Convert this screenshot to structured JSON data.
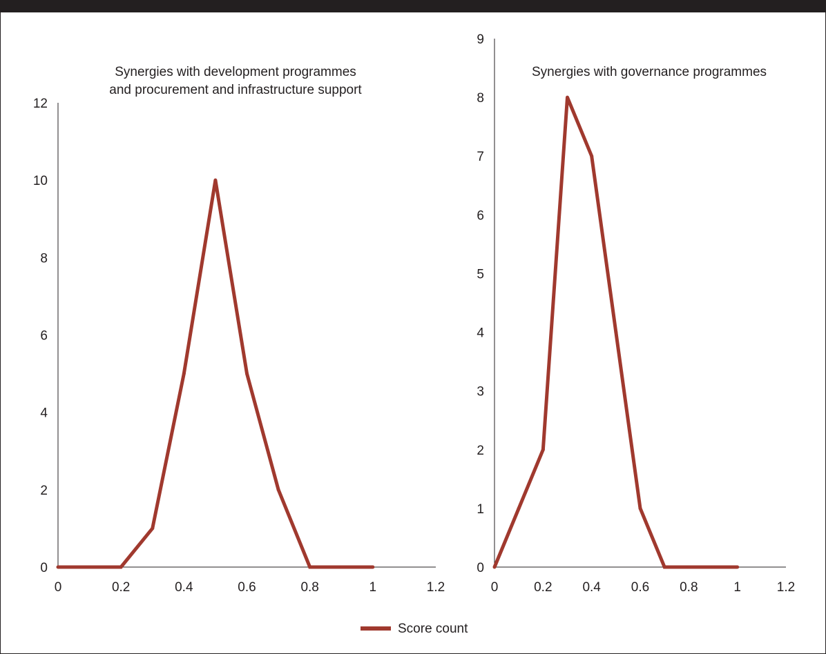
{
  "colors": {
    "series": "#a0392e",
    "axis": "#231f20",
    "topbar": "#231f20"
  },
  "legend": {
    "label": "Score count",
    "placement": "bottom-center"
  },
  "chart_data": [
    {
      "type": "line",
      "title_lines": [
        "Synergies with development programmes",
        "and procurement and infrastructure support"
      ],
      "xlabel": "",
      "ylabel": "",
      "xlim": [
        0,
        1.2
      ],
      "ylim": [
        0,
        12
      ],
      "x_ticks": [
        0,
        0.2,
        0.4,
        0.6,
        0.8,
        1,
        1.2
      ],
      "x_tick_labels": [
        "0",
        "0.2",
        "0.4",
        "0.6",
        "0.8",
        "1",
        "1.2"
      ],
      "y_ticks": [
        0,
        2,
        4,
        6,
        8,
        10,
        12
      ],
      "y_tick_labels": [
        "0",
        "2",
        "4",
        "6",
        "8",
        "10",
        "12"
      ],
      "grid": false,
      "series": [
        {
          "name": "Score count",
          "x": [
            0,
            0.1,
            0.2,
            0.3,
            0.4,
            0.5,
            0.6,
            0.7,
            0.8,
            0.9,
            1.0
          ],
          "y": [
            0,
            0,
            0,
            1,
            5,
            10,
            5,
            2,
            0,
            0,
            0
          ]
        }
      ]
    },
    {
      "type": "line",
      "title_lines": [
        "Synergies with governance programmes"
      ],
      "xlabel": "",
      "ylabel": "",
      "xlim": [
        0,
        1.2
      ],
      "ylim": [
        0,
        9
      ],
      "x_ticks": [
        0,
        0.2,
        0.4,
        0.6,
        0.8,
        1,
        1.2
      ],
      "x_tick_labels": [
        "0",
        "0.2",
        "0.4",
        "0.6",
        "0.8",
        "1",
        "1.2"
      ],
      "y_ticks": [
        0,
        1,
        2,
        3,
        4,
        5,
        6,
        7,
        8,
        9
      ],
      "y_tick_labels": [
        "0",
        "1",
        "2",
        "3",
        "4",
        "5",
        "6",
        "7",
        "8",
        "9"
      ],
      "grid": false,
      "series": [
        {
          "name": "Score count",
          "x": [
            0,
            0.1,
            0.2,
            0.3,
            0.4,
            0.5,
            0.6,
            0.7,
            0.8,
            0.9,
            1.0
          ],
          "y": [
            0,
            1,
            2,
            8,
            7,
            4,
            1,
            0,
            0,
            0,
            0
          ]
        }
      ]
    }
  ]
}
